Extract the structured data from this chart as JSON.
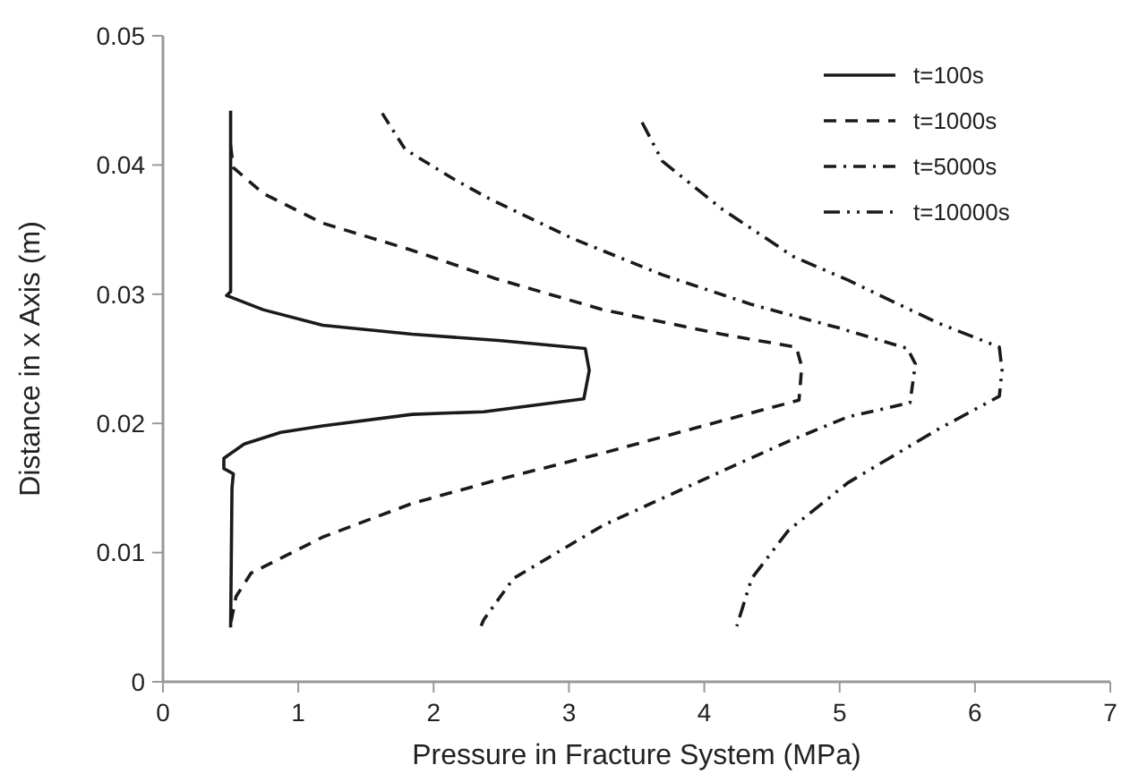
{
  "chart_data": {
    "type": "line",
    "xlabel": "Pressure in Fracture System (MPa)",
    "ylabel": "Distance in x Axis (m)",
    "xlim": [
      0,
      7
    ],
    "xticks": [
      0,
      1,
      2,
      3,
      4,
      5,
      6,
      7
    ],
    "ylim": [
      0,
      0.05
    ],
    "yticks": [
      0,
      0.01,
      0.02,
      0.03,
      0.04,
      0.05
    ],
    "grid": false,
    "legend": "top right",
    "marker": "none",
    "series": [
      {
        "name": "t=100s",
        "color": "#1a1a1a",
        "line_style": "solid",
        "x": [
          0.5,
          0.5,
          0.5,
          0.47,
          0.74,
          1.18,
          1.84,
          2.5,
          3.12,
          3.15,
          3.11,
          2.37,
          1.84,
          1.18,
          0.87,
          0.6,
          0.45,
          0.45,
          0.52,
          0.51,
          0.5
        ],
        "values": [
          0.0442,
          0.035,
          0.0302,
          0.0299,
          0.0288,
          0.0276,
          0.0269,
          0.0264,
          0.0258,
          0.0241,
          0.0219,
          0.0209,
          0.0207,
          0.0198,
          0.0193,
          0.0184,
          0.0173,
          0.0165,
          0.0161,
          0.015,
          0.0042
        ]
      },
      {
        "name": "t=1000s",
        "color": "#1a1a1a",
        "line_style": "dashed",
        "x": [
          0.5,
          0.52,
          0.74,
          1.18,
          1.84,
          2.46,
          3.25,
          4.13,
          4.68,
          4.72,
          4.7,
          4.13,
          3.25,
          2.46,
          1.84,
          1.18,
          0.65,
          0.54,
          0.5
        ],
        "values": [
          0.0415,
          0.0398,
          0.0378,
          0.0355,
          0.0334,
          0.0312,
          0.0288,
          0.0269,
          0.0259,
          0.0244,
          0.0218,
          0.0202,
          0.0177,
          0.0156,
          0.0138,
          0.0112,
          0.0084,
          0.0066,
          0.0045
        ]
      },
      {
        "name": "t=5000s",
        "color": "#1a1a1a",
        "line_style": "dashdot",
        "x": [
          1.62,
          1.79,
          2.15,
          2.41,
          3.03,
          3.69,
          4.35,
          4.99,
          5.5,
          5.56,
          5.52,
          5.06,
          4.62,
          4.13,
          3.25,
          2.59,
          2.37,
          2.35
        ],
        "values": [
          0.044,
          0.0412,
          0.0389,
          0.0374,
          0.0343,
          0.0315,
          0.0292,
          0.0274,
          0.0258,
          0.0246,
          0.0216,
          0.0205,
          0.0186,
          0.0163,
          0.0121,
          0.008,
          0.0048,
          0.0043
        ]
      },
      {
        "name": "t=10000s",
        "color": "#1a1a1a",
        "line_style": "dashdotdot",
        "x": [
          3.54,
          3.69,
          4.13,
          4.66,
          5.06,
          5.72,
          6.18,
          6.2,
          6.18,
          5.72,
          5.06,
          4.62,
          4.35,
          4.24
        ],
        "values": [
          0.0433,
          0.0403,
          0.0366,
          0.0329,
          0.0311,
          0.0278,
          0.0259,
          0.0241,
          0.0221,
          0.0195,
          0.0154,
          0.0117,
          0.008,
          0.0043
        ]
      }
    ]
  }
}
